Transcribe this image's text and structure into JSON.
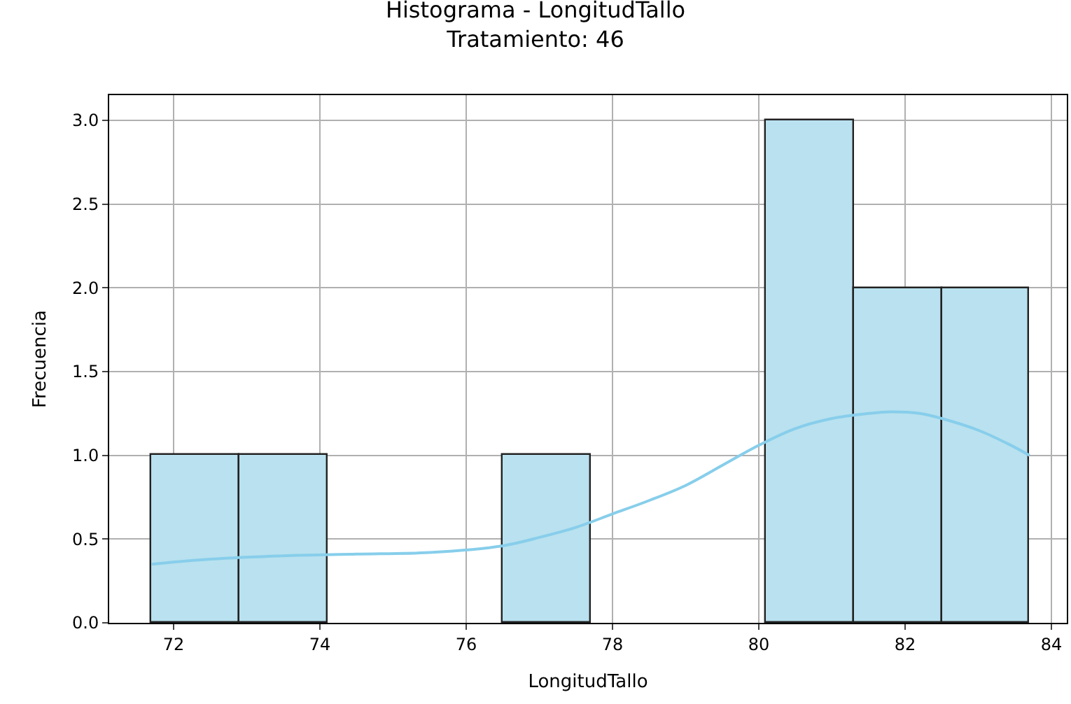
{
  "chart_data": {
    "type": "histogram",
    "title": "Histograma - LongitudTallo",
    "subtitle": "Tratamiento: 46",
    "xlabel": "LongitudTallo",
    "ylabel": "Frecuencia",
    "bins": [
      71.7,
      72.9,
      74.1,
      75.3,
      76.5,
      77.7,
      78.9,
      80.1,
      81.3,
      82.5,
      83.7
    ],
    "values": [
      1,
      1,
      0,
      0,
      1,
      0,
      0,
      3,
      2,
      2
    ],
    "color": "#b9e1ef",
    "series": [
      {
        "type": "line",
        "color": "#87ceeb",
        "x": [
          71.7,
          72.5,
          73.5,
          74.5,
          75.5,
          76.5,
          77.0,
          77.5,
          78.0,
          78.5,
          79.0,
          79.5,
          80.0,
          80.5,
          81.0,
          81.5,
          81.8,
          82.2,
          82.5,
          83.0,
          83.4,
          83.7
        ],
        "values": [
          0.35,
          0.38,
          0.4,
          0.41,
          0.42,
          0.46,
          0.51,
          0.57,
          0.65,
          0.73,
          0.82,
          0.94,
          1.06,
          1.16,
          1.22,
          1.25,
          1.26,
          1.25,
          1.22,
          1.15,
          1.07,
          1.0
        ]
      }
    ],
    "xlim": [
      71.12,
      84.21
    ],
    "xticks": [
      72,
      74,
      76,
      78,
      80,
      82,
      84
    ],
    "ylim": [
      0,
      3.15
    ],
    "yticks": [
      {
        "value": 0,
        "label": "0.0"
      },
      {
        "value": 0.5,
        "label": "0.5"
      },
      {
        "value": 1,
        "label": "1.0"
      },
      {
        "value": 1.5,
        "label": "1.5"
      },
      {
        "value": 2,
        "label": "2.0"
      },
      {
        "value": 2.5,
        "label": "2.5"
      },
      {
        "value": 3,
        "label": "3.0"
      }
    ],
    "grid": true
  }
}
